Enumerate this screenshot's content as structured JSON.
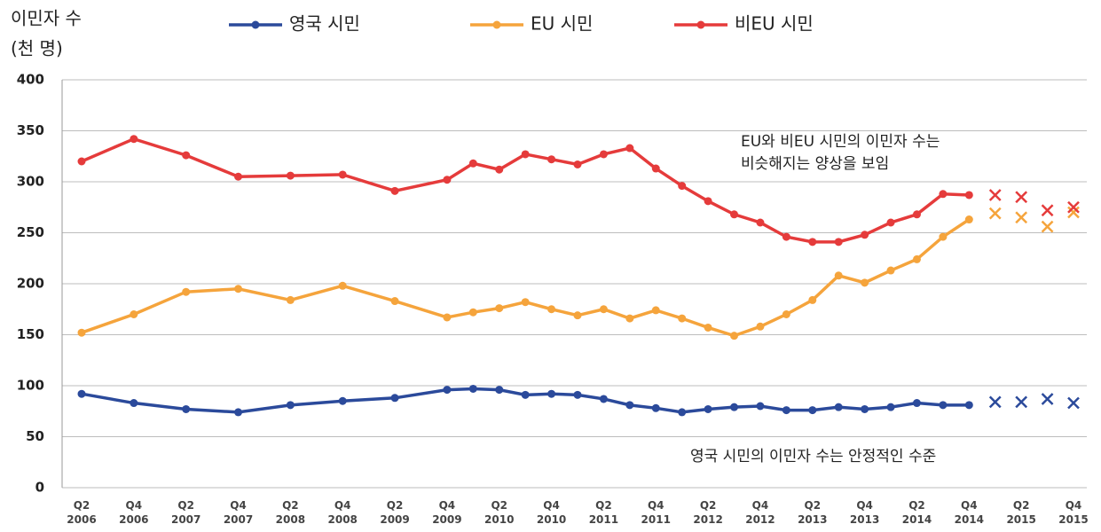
{
  "chart_data": {
    "type": "line",
    "y_label": [
      "이민자 수",
      "(천 명)"
    ],
    "categories": [
      "Q2 2006",
      "Q4 2006",
      "Q2 2007",
      "Q4 2007",
      "Q2 2008",
      "Q4 2008",
      "Q2 2009",
      "Q4 2009",
      null,
      "Q2 2010",
      null,
      "Q4 2010",
      null,
      "Q2 2011",
      null,
      "Q4 2011",
      null,
      "Q2 2012",
      null,
      "Q4 2012",
      null,
      "Q2 2013",
      null,
      "Q4 2013",
      null,
      "Q2 2014",
      null,
      "Q4 2014",
      null,
      "Q2 2015",
      null,
      "Q4 2015"
    ],
    "series": [
      {
        "name": "영국 시민",
        "color": "#2b4a9b",
        "values": [
          92,
          83,
          77,
          74,
          81,
          85,
          88,
          96,
          97,
          96,
          91,
          92,
          91,
          87,
          81,
          78,
          74,
          77,
          79,
          80,
          76,
          76,
          79,
          77,
          79,
          83,
          81,
          81,
          null,
          null,
          null,
          null
        ],
        "forecast": [
          null,
          null,
          null,
          null,
          null,
          null,
          null,
          null,
          null,
          null,
          null,
          null,
          null,
          null,
          null,
          null,
          null,
          null,
          null,
          null,
          null,
          null,
          null,
          null,
          null,
          null,
          null,
          null,
          84,
          84,
          87,
          83
        ]
      },
      {
        "name": "EU 시민",
        "color": "#f5a43c",
        "values": [
          152,
          170,
          192,
          195,
          184,
          198,
          183,
          167,
          172,
          176,
          182,
          175,
          169,
          175,
          166,
          174,
          166,
          157,
          149,
          158,
          170,
          184,
          208,
          201,
          213,
          224,
          246,
          263,
          null,
          null,
          null,
          null
        ],
        "forecast": [
          null,
          null,
          null,
          null,
          null,
          null,
          null,
          null,
          null,
          null,
          null,
          null,
          null,
          null,
          null,
          null,
          null,
          null,
          null,
          null,
          null,
          null,
          null,
          null,
          null,
          null,
          null,
          null,
          269,
          265,
          256,
          270
        ]
      },
      {
        "name": "비EU 시민",
        "color": "#e53b3b",
        "values": [
          320,
          342,
          326,
          305,
          306,
          307,
          291,
          302,
          318,
          312,
          327,
          322,
          317,
          327,
          333,
          313,
          296,
          281,
          268,
          260,
          246,
          241,
          241,
          248,
          260,
          268,
          288,
          287,
          null,
          null,
          null,
          null
        ],
        "forecast": [
          null,
          null,
          null,
          null,
          null,
          null,
          null,
          null,
          null,
          null,
          null,
          null,
          null,
          null,
          null,
          null,
          null,
          null,
          null,
          null,
          null,
          null,
          null,
          null,
          null,
          null,
          null,
          null,
          287,
          285,
          272,
          275
        ]
      }
    ],
    "ylim": [
      0,
      400
    ],
    "yticks": [
      0,
      50,
      100,
      150,
      200,
      250,
      300,
      350,
      400
    ],
    "grid": true,
    "legend": "top",
    "annotations": [
      {
        "lines": [
          "EU와 비EU 시민의 이민자 수는",
          "비슷해지는 양상을 보임"
        ]
      },
      {
        "lines": [
          "영국 시민의 이민자 수는 안정적인 수준"
        ]
      }
    ]
  }
}
